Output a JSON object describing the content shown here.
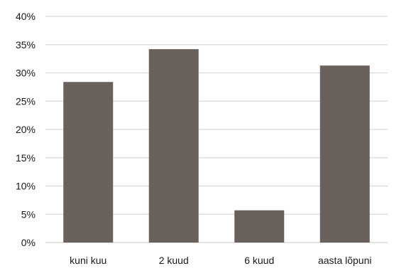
{
  "chart_data": {
    "type": "bar",
    "categories": [
      "kuni kuu",
      "2 kuud",
      "6 kuud",
      "aasta lõpuni"
    ],
    "values": [
      28.4,
      34.2,
      5.7,
      31.3
    ],
    "title": "",
    "xlabel": "",
    "ylabel": "",
    "ylim": [
      0,
      40
    ],
    "yticks": [
      "0%",
      "5%",
      "10%",
      "15%",
      "20%",
      "25%",
      "30%",
      "35%",
      "40%"
    ],
    "grid": true,
    "legend": "none",
    "bar_color": "#6b615c"
  }
}
